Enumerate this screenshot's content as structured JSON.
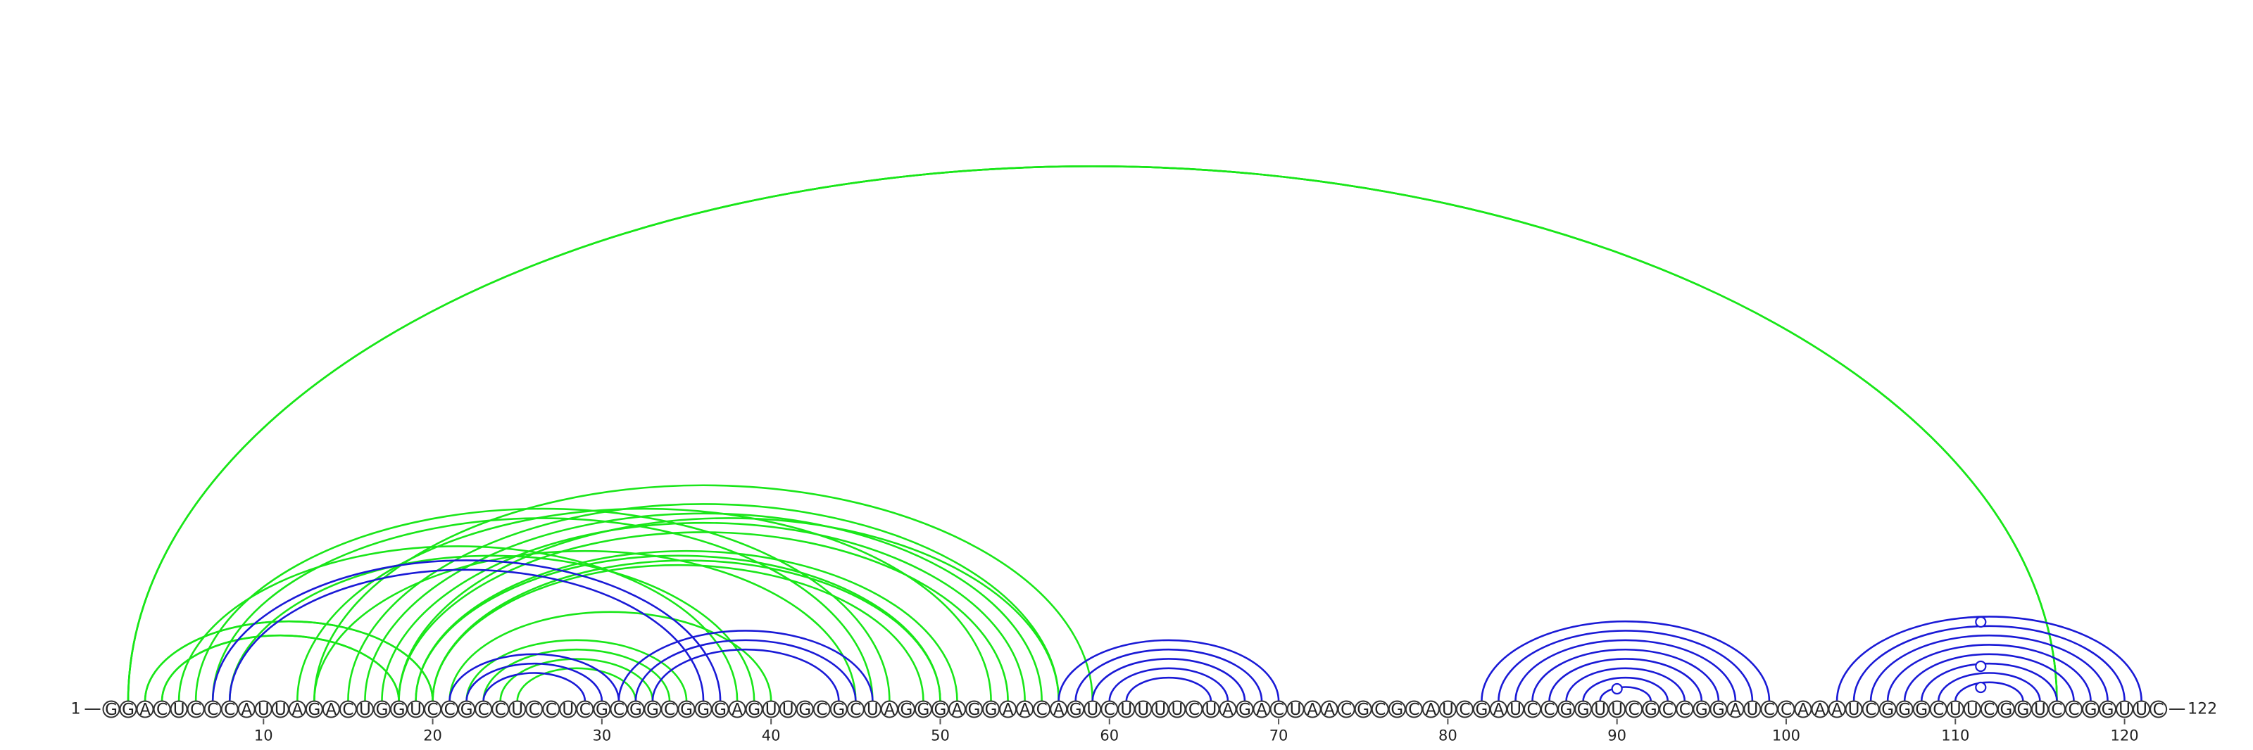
{
  "sequence": "GGACUCCCAUUAGACUGGUCCGCCUCCUCGCGGCGGGAGUUGCGCUAGGGAGGAACAGUCUUUUCUAGACUAACGCGCAUCGAUCCGGUUCGCCGGAUCCAAAUCGGGCUUCGGUCCGGUUC",
  "start_label": "1",
  "end_label": "122",
  "tick_labels": [
    "10",
    "20",
    "30",
    "40",
    "50",
    "60",
    "70",
    "80",
    "90",
    "100",
    "110",
    "120"
  ],
  "colors": {
    "green": "#19e619",
    "blue": "#1a1ad6"
  },
  "chart_data": {
    "type": "arc_diagram",
    "length": 122,
    "ticks": [
      10,
      20,
      30,
      40,
      50,
      60,
      70,
      80,
      90,
      100,
      110,
      120
    ],
    "green_arcs": [
      [
        2,
        116
      ],
      [
        2,
        116
      ],
      [
        2,
        116
      ],
      [
        3,
        20
      ],
      [
        3,
        20
      ],
      [
        4,
        18
      ],
      [
        4,
        18
      ],
      [
        5,
        38
      ],
      [
        6,
        47
      ],
      [
        7,
        46
      ],
      [
        8,
        39
      ],
      [
        12,
        53
      ],
      [
        13,
        45
      ],
      [
        13,
        59
      ],
      [
        15,
        57
      ],
      [
        16,
        56
      ],
      [
        17,
        55
      ],
      [
        18,
        54
      ],
      [
        18,
        57
      ],
      [
        19,
        50
      ],
      [
        19,
        51
      ],
      [
        20,
        49
      ],
      [
        20,
        50
      ],
      [
        21,
        40
      ],
      [
        22,
        35
      ],
      [
        23,
        34
      ],
      [
        24,
        33
      ],
      [
        25,
        32
      ]
    ],
    "blue_arcs": [
      [
        7,
        37
      ],
      [
        8,
        36
      ],
      [
        21,
        31
      ],
      [
        22,
        30
      ],
      [
        23,
        29
      ],
      [
        31,
        46
      ],
      [
        32,
        45
      ],
      [
        33,
        44
      ],
      [
        57,
        70
      ],
      [
        58,
        69
      ],
      [
        59,
        68
      ],
      [
        60,
        67
      ],
      [
        61,
        66
      ],
      [
        82,
        99
      ],
      [
        83,
        98
      ],
      [
        84,
        97
      ],
      [
        85,
        96
      ],
      [
        86,
        95
      ],
      [
        87,
        94
      ],
      [
        88,
        93
      ],
      [
        89,
        92
      ],
      [
        103,
        121
      ],
      [
        104,
        120
      ],
      [
        105,
        119
      ],
      [
        106,
        118
      ],
      [
        107,
        117
      ],
      [
        108,
        116
      ],
      [
        109,
        115
      ],
      [
        110,
        114
      ]
    ],
    "marked_positions": [
      90,
      111
    ]
  }
}
